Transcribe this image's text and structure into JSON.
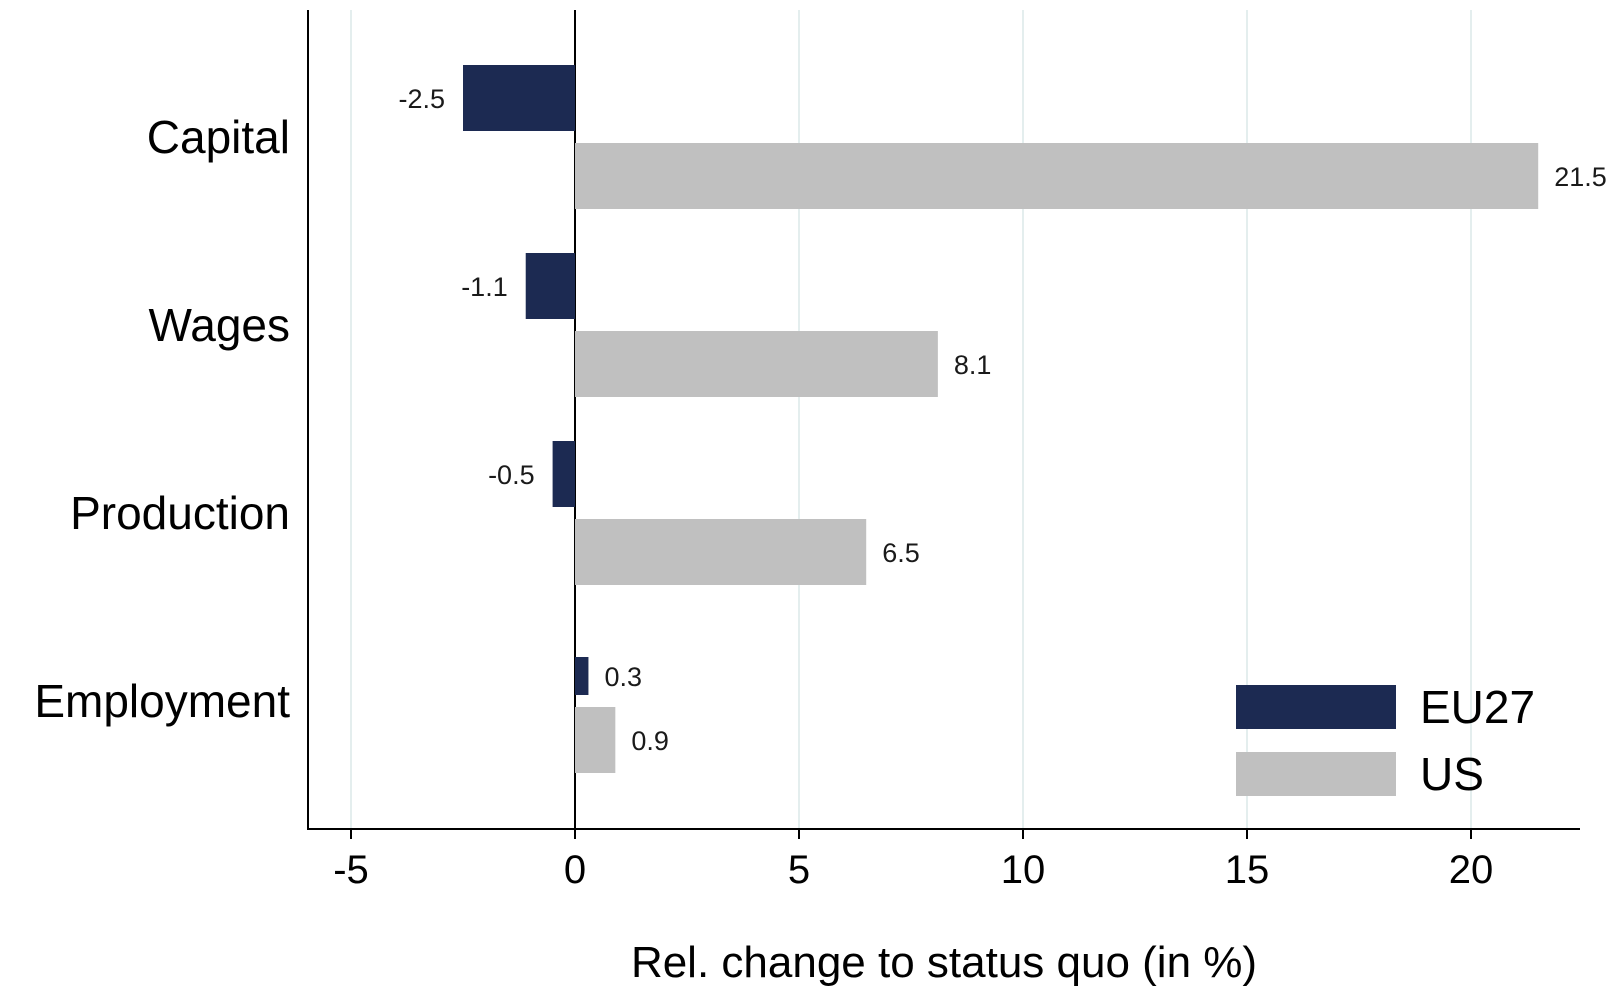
{
  "chart_data": {
    "type": "bar",
    "orientation": "horizontal",
    "categories": [
      "Capital",
      "Wages",
      "Production",
      "Employment"
    ],
    "series": [
      {
        "name": "EU27",
        "color": "#1c2a52",
        "values": [
          -2.5,
          -1.1,
          -0.5,
          0.3
        ],
        "labels": [
          "-2.5",
          "-1.1",
          "-0.5",
          "0.3"
        ]
      },
      {
        "name": "US",
        "color": "#c0c0c0",
        "values": [
          21.5,
          8.1,
          6.5,
          0.9
        ],
        "labels": [
          "21.5",
          "8.1",
          "6.5",
          "0.9"
        ]
      }
    ],
    "xlabel": "Rel. change to status quo (in %)",
    "xlim": [
      -6,
      22.5
    ],
    "xticks": [
      -5,
      0,
      5,
      10,
      15,
      20
    ],
    "xtick_labels": [
      "-5",
      "0",
      "5",
      "10",
      "15",
      "20"
    ],
    "grid": "vertical",
    "grid_color": "#e4eeee",
    "legend_position": "bottom-right"
  }
}
